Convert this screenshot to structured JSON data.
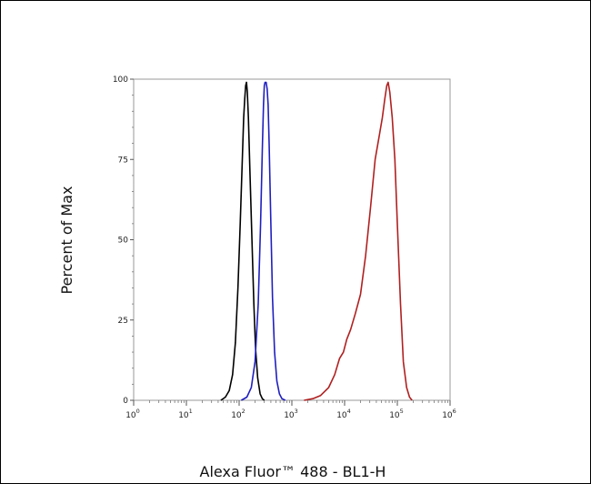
{
  "chart_data": {
    "type": "line",
    "xlabel": "Alexa Fluor™ 488 - BL1-H",
    "ylabel": "Percent of Max",
    "x_scale": "log",
    "xlim": [
      1,
      1000000
    ],
    "ylim": [
      0,
      100
    ],
    "x_tick_labels": [
      {
        "base": "10",
        "exp": "0"
      },
      {
        "base": "10",
        "exp": "1"
      },
      {
        "base": "10",
        "exp": "2"
      },
      {
        "base": "10",
        "exp": "3"
      },
      {
        "base": "10",
        "exp": "4"
      },
      {
        "base": "10",
        "exp": "5"
      },
      {
        "base": "10",
        "exp": "6"
      }
    ],
    "y_ticks": [
      0,
      25,
      50,
      75,
      100
    ],
    "y_tick_labels": [
      "0",
      "25",
      "50",
      "75",
      "100"
    ],
    "grid": false,
    "legend": "none",
    "series": [
      {
        "color": "#000000",
        "points": [
          [
            45,
            0
          ],
          [
            55,
            1
          ],
          [
            65,
            3
          ],
          [
            75,
            8
          ],
          [
            85,
            18
          ],
          [
            95,
            35
          ],
          [
            105,
            55
          ],
          [
            115,
            75
          ],
          [
            122,
            88
          ],
          [
            128,
            94
          ],
          [
            133,
            98
          ],
          [
            138,
            99
          ],
          [
            143,
            96
          ],
          [
            150,
            88
          ],
          [
            160,
            72
          ],
          [
            175,
            50
          ],
          [
            190,
            30
          ],
          [
            205,
            16
          ],
          [
            225,
            7
          ],
          [
            250,
            2
          ],
          [
            275,
            0.5
          ],
          [
            300,
            0
          ]
        ]
      },
      {
        "color": "#1f1fbf",
        "points": [
          [
            110,
            0
          ],
          [
            140,
            1
          ],
          [
            170,
            4
          ],
          [
            200,
            12
          ],
          [
            230,
            30
          ],
          [
            255,
            55
          ],
          [
            275,
            78
          ],
          [
            290,
            92
          ],
          [
            300,
            98
          ],
          [
            310,
            99
          ],
          [
            325,
            99
          ],
          [
            340,
            97
          ],
          [
            355,
            92
          ],
          [
            370,
            80
          ],
          [
            400,
            55
          ],
          [
            430,
            32
          ],
          [
            470,
            15
          ],
          [
            520,
            6
          ],
          [
            580,
            2
          ],
          [
            650,
            0.5
          ],
          [
            750,
            0
          ]
        ]
      },
      {
        "color": "#b02020",
        "points": [
          [
            1700,
            0
          ],
          [
            2500,
            0.5
          ],
          [
            3500,
            1.5
          ],
          [
            5000,
            4
          ],
          [
            6500,
            8
          ],
          [
            8000,
            13
          ],
          [
            9500,
            15
          ],
          [
            11000,
            19
          ],
          [
            13000,
            22
          ],
          [
            16000,
            27
          ],
          [
            20000,
            33
          ],
          [
            25000,
            45
          ],
          [
            31000,
            60
          ],
          [
            38000,
            75
          ],
          [
            45000,
            82
          ],
          [
            52000,
            88
          ],
          [
            58000,
            94
          ],
          [
            63000,
            98
          ],
          [
            67000,
            99
          ],
          [
            72000,
            96
          ],
          [
            80000,
            88
          ],
          [
            90000,
            75
          ],
          [
            100000,
            55
          ],
          [
            115000,
            30
          ],
          [
            130000,
            12
          ],
          [
            150000,
            4
          ],
          [
            170000,
            1
          ],
          [
            190000,
            0
          ]
        ]
      }
    ]
  }
}
